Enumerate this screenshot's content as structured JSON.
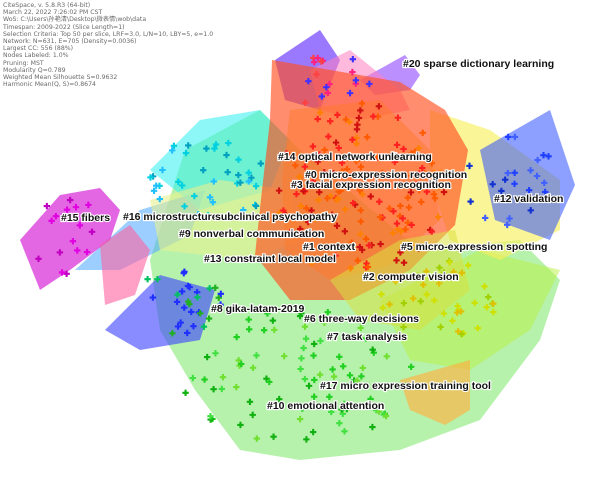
{
  "meta_lines": [
    "CiteSpace, v. 5.8.R3 (64-bit)",
    "March 22, 2022 7:26:02 PM CST",
    "WoS: C:\\Users\\孙艳清\\Desktop\\微表情\\wob\\data",
    "Timespan: 2009-2022 (Slice Length=1)",
    "Selection Criteria: Top 50 per slice, LRF=3.0, L/N=10, LBY=5, e=1.0",
    "Network: N=631, E=705 (Density=0.0036)",
    "Largest CC: 556 (88%)",
    "Nodes Labeled: 1.0%",
    "Pruning: MST",
    "Modularity Q=0.789",
    "Weighted Mean Silhouette S=0.9632",
    "Harmonic Mean(Q, S)=0.8674"
  ],
  "clusters": [
    {
      "id": 0,
      "label": "#0 micro-expression recognition",
      "color": "#ff3b1f"
    },
    {
      "id": 1,
      "label": "#1 context",
      "color": "#ff6a00"
    },
    {
      "id": 2,
      "label": "#2 computer vision",
      "color": "#ffb000"
    },
    {
      "id": 3,
      "label": "#3 facial expression recognition",
      "color": "#ff8a00"
    },
    {
      "id": 5,
      "label": "#5 micro-expression spotting",
      "color": "#e8e000"
    },
    {
      "id": 6,
      "label": "#6 three-way decisions",
      "color": "#c8f000"
    },
    {
      "id": 7,
      "label": "#7 task analysis",
      "color": "#9be000"
    },
    {
      "id": 8,
      "label": "#8 gika-latam-2019",
      "color": "#80d820"
    },
    {
      "id": 9,
      "label": "#9 nonverbal communication",
      "color": "#00c878"
    },
    {
      "id": 10,
      "label": "#10 emotional attention",
      "color": "#30e040"
    },
    {
      "id": 12,
      "label": "#12 validation",
      "color": "#3050ff"
    },
    {
      "id": 13,
      "label": "#13 constraint local model",
      "color": "#00b0d0"
    },
    {
      "id": 14,
      "label": "#14 optical network units",
      "color": "#ff4000"
    },
    {
      "id": 15,
      "label": "#15 fibers",
      "color": "#d000d0"
    },
    {
      "id": 16,
      "label": "#16 microstructure",
      "color": "#3060ff"
    },
    {
      "id": 17,
      "label": "#17 micro expression training tool",
      "color": "#50d030"
    },
    {
      "id": 20,
      "label": "#20 sparse dictionary learning",
      "color": "#7050ff"
    }
  ],
  "extra_labels": {
    "learning": "learning",
    "subclinical": "subclinical psychopathy"
  }
}
